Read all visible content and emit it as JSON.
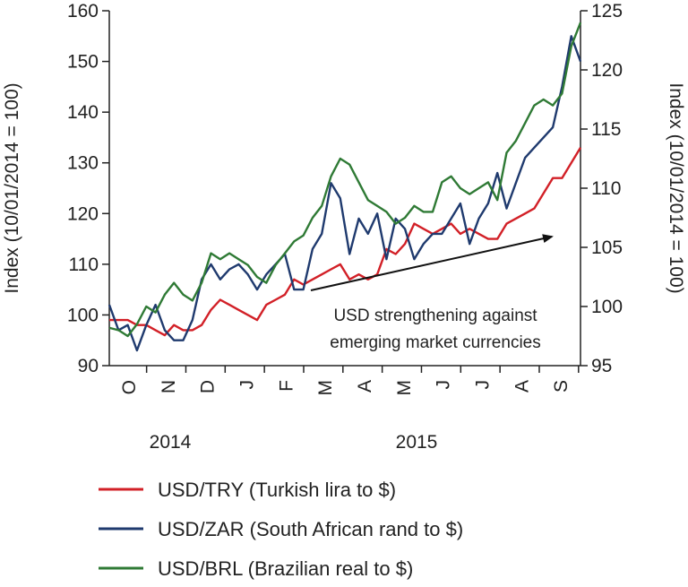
{
  "chart_data": {
    "type": "line",
    "y_left": {
      "label": "Index (10/01/2014 = 100)",
      "ticks": [
        90,
        100,
        110,
        120,
        130,
        140,
        150,
        160
      ],
      "range": [
        90,
        160
      ]
    },
    "y_right": {
      "label": "Index (10/01/2014 = 100)",
      "ticks": [
        95,
        100,
        105,
        110,
        115,
        120,
        125
      ],
      "range": [
        95,
        125
      ]
    },
    "x_months": [
      "O",
      "N",
      "D",
      "J",
      "F",
      "M",
      "A",
      "M",
      "J",
      "J",
      "A",
      "S"
    ],
    "years": [
      "2014",
      "2015"
    ],
    "x_range_week": [
      0,
      51
    ],
    "annotation": {
      "line1": "USD strengthening against",
      "line2": "emerging market currencies"
    },
    "grid": false,
    "legend_position": "bottom",
    "series": [
      {
        "name": "USD/TRY (Turkish lira to $)",
        "color": "#d22027",
        "axis": "left",
        "points": [
          [
            0,
            99
          ],
          [
            1,
            99
          ],
          [
            2,
            99
          ],
          [
            3,
            98
          ],
          [
            4,
            98
          ],
          [
            5,
            97
          ],
          [
            6,
            96
          ],
          [
            7,
            98
          ],
          [
            8,
            97
          ],
          [
            9,
            97
          ],
          [
            10,
            98
          ],
          [
            11,
            101
          ],
          [
            12,
            103
          ],
          [
            13,
            102
          ],
          [
            14,
            101
          ],
          [
            15,
            100
          ],
          [
            16,
            99
          ],
          [
            17,
            102
          ],
          [
            18,
            103
          ],
          [
            19,
            104
          ],
          [
            20,
            107
          ],
          [
            21,
            106
          ],
          [
            22,
            107
          ],
          [
            23,
            108
          ],
          [
            24,
            109
          ],
          [
            25,
            110
          ],
          [
            26,
            107
          ],
          [
            27,
            108
          ],
          [
            28,
            107
          ],
          [
            29,
            108
          ],
          [
            30,
            113
          ],
          [
            31,
            112
          ],
          [
            32,
            114
          ],
          [
            33,
            118
          ],
          [
            34,
            117
          ],
          [
            35,
            116
          ],
          [
            36,
            117
          ],
          [
            37,
            118
          ],
          [
            38,
            116
          ],
          [
            39,
            117
          ],
          [
            40,
            116
          ],
          [
            41,
            115
          ],
          [
            42,
            115
          ],
          [
            43,
            118
          ],
          [
            44,
            119
          ],
          [
            45,
            120
          ],
          [
            46,
            121
          ],
          [
            47,
            124
          ],
          [
            48,
            127
          ],
          [
            49,
            127
          ],
          [
            50,
            130
          ],
          [
            51,
            133
          ]
        ]
      },
      {
        "name": "USD/ZAR (South African rand to $)",
        "color": "#1f3a6e",
        "axis": "left",
        "points": [
          [
            0,
            102
          ],
          [
            1,
            97
          ],
          [
            2,
            98
          ],
          [
            3,
            93
          ],
          [
            4,
            98
          ],
          [
            5,
            102
          ],
          [
            6,
            97
          ],
          [
            7,
            95
          ],
          [
            8,
            95
          ],
          [
            9,
            99
          ],
          [
            10,
            107
          ],
          [
            11,
            110
          ],
          [
            12,
            107
          ],
          [
            13,
            109
          ],
          [
            14,
            110
          ],
          [
            15,
            108
          ],
          [
            16,
            105
          ],
          [
            17,
            108
          ],
          [
            18,
            110
          ],
          [
            19,
            112
          ],
          [
            20,
            105
          ],
          [
            21,
            105
          ],
          [
            22,
            113
          ],
          [
            23,
            116
          ],
          [
            24,
            126
          ],
          [
            25,
            123
          ],
          [
            26,
            112
          ],
          [
            27,
            119
          ],
          [
            28,
            116
          ],
          [
            29,
            120
          ],
          [
            30,
            111
          ],
          [
            31,
            119
          ],
          [
            32,
            117
          ],
          [
            33,
            111
          ],
          [
            34,
            114
          ],
          [
            35,
            116
          ],
          [
            36,
            116
          ],
          [
            37,
            119
          ],
          [
            38,
            122
          ],
          [
            39,
            114
          ],
          [
            40,
            119
          ],
          [
            41,
            122
          ],
          [
            42,
            128
          ],
          [
            43,
            121
          ],
          [
            44,
            126
          ],
          [
            45,
            131
          ],
          [
            46,
            133
          ],
          [
            47,
            135
          ],
          [
            48,
            137
          ],
          [
            49,
            145
          ],
          [
            50,
            155
          ],
          [
            51,
            150
          ]
        ]
      },
      {
        "name": "USD/BRL (Brazilian real to $)",
        "color": "#2f7a35",
        "axis": "right",
        "points": [
          [
            0,
            98.2
          ],
          [
            1,
            98.0
          ],
          [
            2,
            97.5
          ],
          [
            3,
            98.5
          ],
          [
            4,
            100.0
          ],
          [
            5,
            99.5
          ],
          [
            6,
            101.0
          ],
          [
            7,
            102.0
          ],
          [
            8,
            101.0
          ],
          [
            9,
            100.5
          ],
          [
            10,
            102.0
          ],
          [
            11,
            104.5
          ],
          [
            12,
            104.0
          ],
          [
            13,
            104.5
          ],
          [
            14,
            104.0
          ],
          [
            15,
            103.5
          ],
          [
            16,
            102.5
          ],
          [
            17,
            102.0
          ],
          [
            18,
            103.5
          ],
          [
            19,
            104.5
          ],
          [
            20,
            105.5
          ],
          [
            21,
            106.0
          ],
          [
            22,
            107.5
          ],
          [
            23,
            108.5
          ],
          [
            24,
            111.0
          ],
          [
            25,
            112.5
          ],
          [
            26,
            112.0
          ],
          [
            27,
            110.5
          ],
          [
            28,
            109.0
          ],
          [
            29,
            108.5
          ],
          [
            30,
            108.0
          ],
          [
            31,
            107.0
          ],
          [
            32,
            107.5
          ],
          [
            33,
            108.5
          ],
          [
            34,
            108.0
          ],
          [
            35,
            108.0
          ],
          [
            36,
            110.5
          ],
          [
            37,
            111.0
          ],
          [
            38,
            110.0
          ],
          [
            39,
            109.5
          ],
          [
            40,
            110.0
          ],
          [
            41,
            110.5
          ],
          [
            42,
            109.0
          ],
          [
            43,
            113.0
          ],
          [
            44,
            114.0
          ],
          [
            45,
            115.5
          ],
          [
            46,
            117.0
          ],
          [
            47,
            117.5
          ],
          [
            48,
            117.0
          ],
          [
            49,
            118.0
          ],
          [
            50,
            122.0
          ],
          [
            51,
            124.0
          ]
        ]
      }
    ]
  }
}
